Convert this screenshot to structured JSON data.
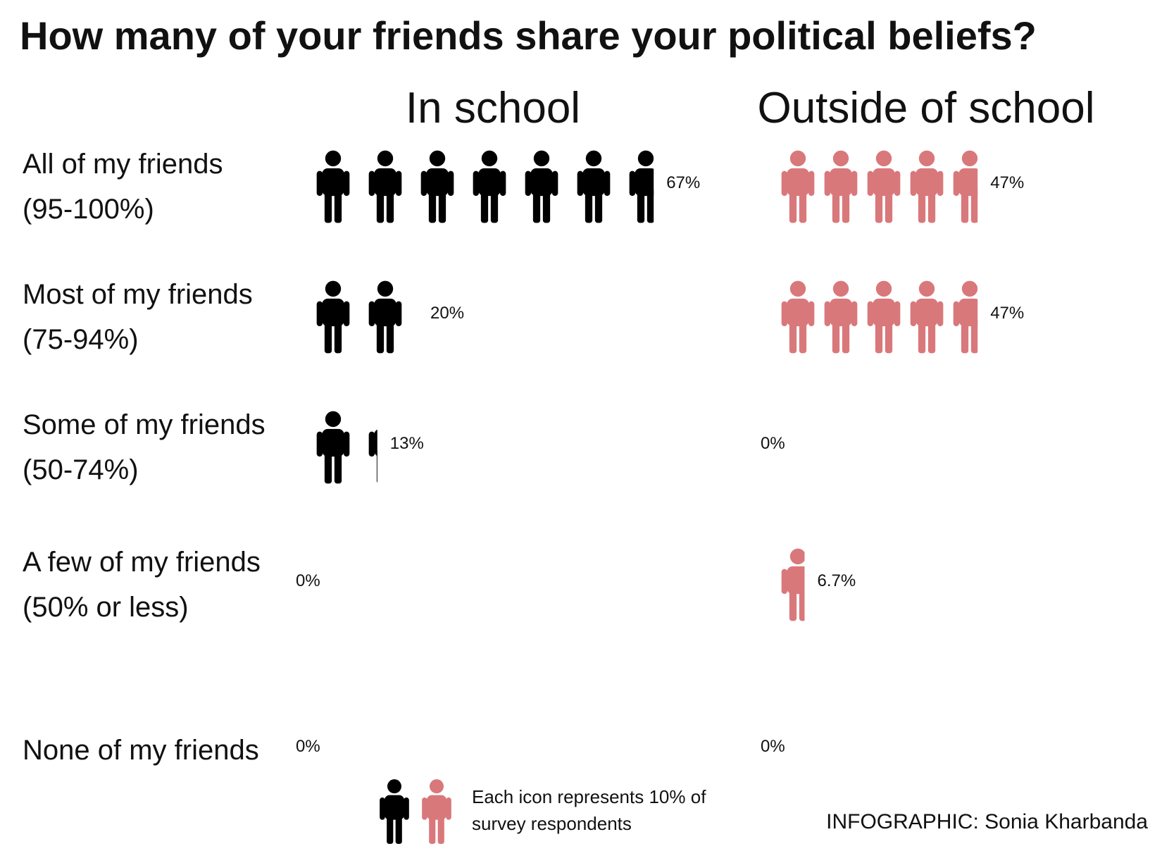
{
  "chart_data": {
    "type": "pictograph",
    "title": "How many of your friends share your political beliefs?",
    "categories": [
      "All of my friends (95-100%)",
      "Most of my friends (75-94%)",
      "Some of my friends (50-74%)",
      "A few of my friends (50% or less)",
      "None of my friends"
    ],
    "icon_value": 10,
    "note": "Each icon represents 10% of survey respondents",
    "credit": "INFOGRAPHIC: Sonia Kharbanda",
    "series": [
      {
        "name": "In school",
        "color": "#000000",
        "values": [
          67,
          20,
          13,
          0,
          0
        ],
        "value_labels": [
          "67%",
          "20%",
          "13%",
          "0%",
          "0%"
        ]
      },
      {
        "name": "Outside of school",
        "color": "#d9787b",
        "values": [
          47,
          47,
          0,
          6.7,
          0
        ],
        "value_labels": [
          "47%",
          "47%",
          "0%",
          "6.7%",
          "0%"
        ]
      }
    ]
  }
}
